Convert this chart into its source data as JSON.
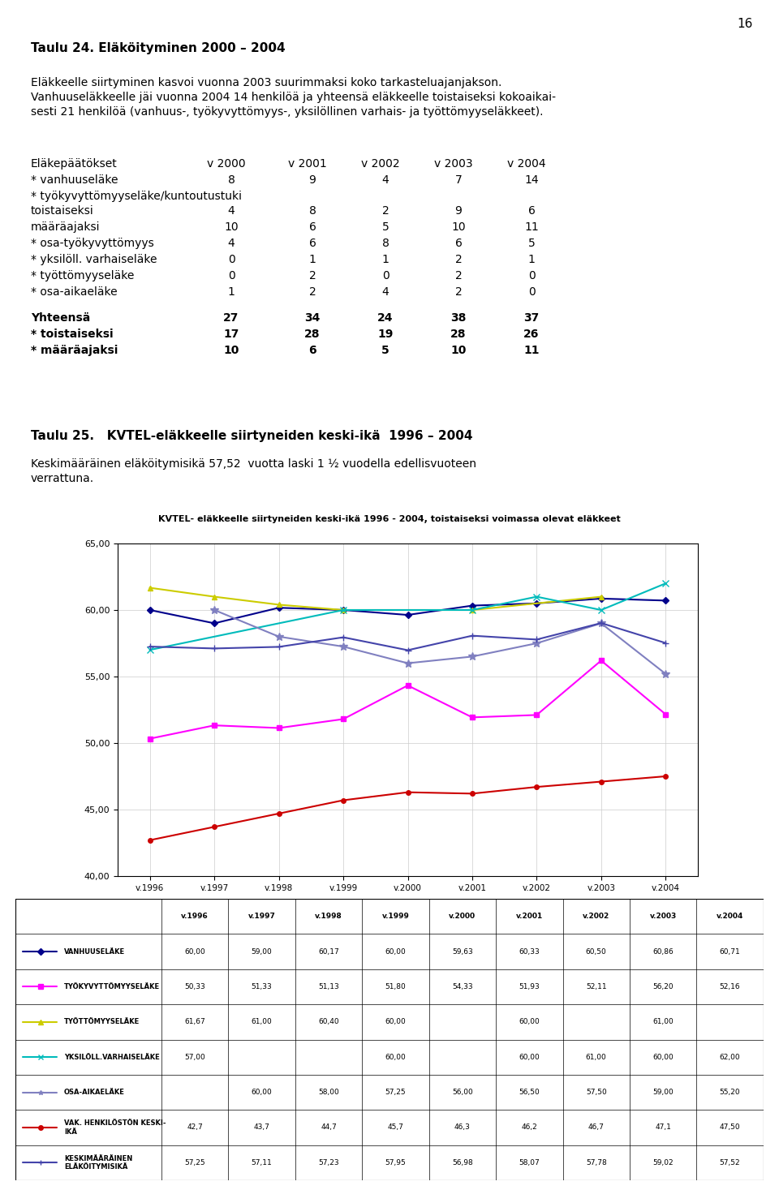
{
  "page_number": "16",
  "title1_bold": "Taulu 24. Eläköityminen 2000 – 2004",
  "para1_line1": "Eläkkeelle siirtyminen kasvoi vuonna 2003 suurimmaksi koko tarkasteluajanjakson.",
  "para1_line2": "Vanhuuseläkkeelle jäi vuonna 2004 14 henkilöä ja yhteensä eläkkeelle toistaiseksi kokoaikai-",
  "para1_line3": "sesti 21 henkilöä (vanhuus-, työkyvyttömyys-, yksilöllinen varhais- ja työttömyyseläkkeet).",
  "table1": {
    "headers": [
      "Eläkepäätökset",
      "v 2000",
      "v 2001",
      "v 2002",
      "v 2003",
      "v 2004"
    ],
    "rows": [
      [
        "* vanhuuseläke",
        "8",
        "9",
        "4",
        "7",
        "14"
      ],
      [
        "* työkyvyttömyyseläke/kuntoutustuki",
        "",
        "",
        "",
        "",
        ""
      ],
      [
        "toistaiseksi",
        "4",
        "8",
        "2",
        "9",
        "6"
      ],
      [
        "määräajaksi",
        "10",
        "6",
        "5",
        "10",
        "11"
      ],
      [
        "* osa-työkyvyttömyys",
        "4",
        "6",
        "8",
        "6",
        "5"
      ],
      [
        "* yksilöll. varhaiseläke",
        "0",
        "1",
        "1",
        "2",
        "1"
      ],
      [
        "* työttömyyseläke",
        "0",
        "2",
        "0",
        "2",
        "0"
      ],
      [
        "* osa-aikaeläke",
        "1",
        "2",
        "4",
        "2",
        "0"
      ]
    ],
    "summary_rows": [
      [
        "Yhteensä",
        "27",
        "34",
        "24",
        "38",
        "37"
      ],
      [
        "* toistaiseksi",
        "17",
        "28",
        "19",
        "28",
        "26"
      ],
      [
        "* määräajaksi",
        "10",
        "6",
        "5",
        "10",
        "11"
      ]
    ]
  },
  "title2_bold": "Taulu 25.   KVTEL-eläkkeelle siirtyneiden keski-ikä  1996 – 2004",
  "para2_line1": "Keskimääräinen eläköitymisikä 57,52  vuotta laski 1 ½ vuodella edellisvuoteen",
  "para2_line2": "verrattuna.",
  "chart": {
    "title": "KVTEL- eläkkeelle siirtyneiden keski-ikä 1996 - 2004, toistaiseksi voimassa olevat eläkkeet",
    "x_labels": [
      "v.1996",
      "v.1997",
      "v.1998",
      "v.1999",
      "v.2000",
      "v.2001",
      "v.2002",
      "v.2003",
      "v.2004"
    ],
    "ylim": [
      40.0,
      65.0
    ],
    "yticks": [
      40.0,
      45.0,
      50.0,
      55.0,
      60.0,
      65.0
    ],
    "series": [
      {
        "name": "VANHUUSELÄKE",
        "color": "#00008B",
        "marker": "D",
        "markersize": 4,
        "linewidth": 1.5,
        "data": [
          60.0,
          59.0,
          60.17,
          60.0,
          59.63,
          60.33,
          60.5,
          60.86,
          60.71
        ]
      },
      {
        "name": "TYÖKYVYTTÖMYYSELÄKE",
        "color": "#FF00FF",
        "marker": "s",
        "markersize": 4,
        "linewidth": 1.5,
        "data": [
          50.33,
          51.33,
          51.13,
          51.8,
          54.33,
          51.93,
          52.11,
          56.2,
          52.16
        ]
      },
      {
        "name": "TYÖTTÖMYYSELÄKE",
        "color": "#CCCC00",
        "marker": "^",
        "markersize": 5,
        "linewidth": 1.5,
        "data": [
          61.67,
          61.0,
          60.4,
          60.0,
          null,
          60.0,
          null,
          61.0,
          null
        ]
      },
      {
        "name": "YKSILÖLL.VARHAISELÄKE",
        "color": "#00BBBB",
        "marker": "x",
        "markersize": 6,
        "linewidth": 1.5,
        "data": [
          57.0,
          null,
          null,
          60.0,
          null,
          60.0,
          61.0,
          60.0,
          62.0
        ]
      },
      {
        "name": "OSA-AIKAELÄKE",
        "color": "#8080C0",
        "marker": "*",
        "markersize": 7,
        "linewidth": 1.5,
        "data": [
          null,
          60.0,
          58.0,
          57.25,
          56.0,
          56.5,
          57.5,
          59.0,
          55.2
        ]
      },
      {
        "name": "VAK. HENKILÖSTÖN KESKI-IKÄ",
        "color": "#CC0000",
        "marker": "o",
        "markersize": 4,
        "linewidth": 1.5,
        "data": [
          42.7,
          43.7,
          44.7,
          45.7,
          46.3,
          46.2,
          46.7,
          47.1,
          47.5
        ]
      },
      {
        "name": "KESKIMÄÄRÄINEN ELÄKÖITYMISIKÄ",
        "color": "#4444AA",
        "marker": "+",
        "markersize": 6,
        "linewidth": 1.5,
        "data": [
          57.25,
          57.11,
          57.23,
          57.95,
          56.98,
          58.07,
          57.78,
          59.02,
          57.52
        ]
      }
    ],
    "legend_table": {
      "col_headers": [
        "",
        "v.1996",
        "v.1997",
        "v.1998",
        "v.1999",
        "v.2000",
        "v.2001",
        "v.2002",
        "v.2003",
        "v.2004"
      ],
      "rows": [
        [
          "VANHUUSELÄKE",
          "60,00",
          "59,00",
          "60,17",
          "60,00",
          "59,63",
          "60,33",
          "60,50",
          "60,86",
          "60,71"
        ],
        [
          "TYÖKYVYTTÖMYYSELÄKE",
          "50,33",
          "51,33",
          "51,13",
          "51,80",
          "54,33",
          "51,93",
          "52,11",
          "56,20",
          "52,16"
        ],
        [
          "TYÖTTÖMYYSELÄKE",
          "61,67",
          "61,00",
          "60,40",
          "60,00",
          "",
          "60,00",
          "",
          "61,00",
          ""
        ],
        [
          "YKSILÖLL.VARHAISELÄKE",
          "57,00",
          "",
          "",
          "60,00",
          "",
          "60,00",
          "61,00",
          "60,00",
          "62,00"
        ],
        [
          "OSA-AIKAELÄKE",
          "",
          "60,00",
          "58,00",
          "57,25",
          "56,00",
          "56,50",
          "57,50",
          "59,00",
          "55,20"
        ],
        [
          "VAK. HENKILÖSTÖN KESKI-\nIKÄ",
          "42,7",
          "43,7",
          "44,7",
          "45,7",
          "46,3",
          "46,2",
          "46,7",
          "47,1",
          "47,50"
        ],
        [
          "KESKIMÄÄRÄINEN\nELÄKÖITYMISIKÄ",
          "57,25",
          "57,11",
          "57,23",
          "57,95",
          "56,98",
          "58,07",
          "57,78",
          "59,02",
          "57,52"
        ]
      ],
      "row_colors": [
        "#00008B",
        "#FF00FF",
        "#CCCC00",
        "#00BBBB",
        "#8080C0",
        "#CC0000",
        "#4444AA"
      ]
    }
  }
}
